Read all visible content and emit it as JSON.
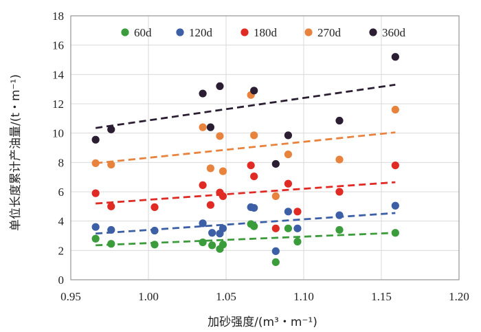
{
  "chart_data": {
    "type": "scatter",
    "xlabel": "加砂强度/(m³・m⁻¹)",
    "ylabel": "单位长度累计产油量/(t・m⁻¹)",
    "xlim": [
      0.95,
      1.2
    ],
    "ylim": [
      0,
      18
    ],
    "x_ticks": [
      "0.95",
      "1.00",
      "1.05",
      "1.10",
      "1.15",
      "1.20"
    ],
    "y_ticks": [
      "0",
      "2",
      "4",
      "6",
      "8",
      "10",
      "12",
      "14",
      "16",
      "18"
    ],
    "grid": true,
    "legend_position": "top",
    "series": [
      {
        "name": "60d",
        "color": "#3a9c3a",
        "points": [
          [
            0.966,
            2.8
          ],
          [
            0.976,
            2.45
          ],
          [
            1.004,
            2.4
          ],
          [
            1.035,
            2.55
          ],
          [
            1.041,
            2.35
          ],
          [
            1.046,
            2.1
          ],
          [
            1.048,
            2.4
          ],
          [
            1.066,
            3.8
          ],
          [
            1.068,
            3.65
          ],
          [
            1.082,
            1.2
          ],
          [
            1.09,
            3.5
          ],
          [
            1.096,
            2.6
          ],
          [
            1.123,
            3.4
          ],
          [
            1.159,
            3.2
          ]
        ],
        "trend": [
          [
            0.966,
            2.35
          ],
          [
            1.159,
            3.2
          ]
        ]
      },
      {
        "name": "120d",
        "color": "#3c5fa6",
        "points": [
          [
            0.966,
            3.6
          ],
          [
            0.976,
            3.4
          ],
          [
            1.004,
            3.35
          ],
          [
            1.035,
            3.85
          ],
          [
            1.041,
            3.2
          ],
          [
            1.046,
            3.15
          ],
          [
            1.048,
            3.5
          ],
          [
            1.066,
            4.95
          ],
          [
            1.068,
            4.9
          ],
          [
            1.082,
            1.95
          ],
          [
            1.09,
            4.65
          ],
          [
            1.096,
            3.5
          ],
          [
            1.123,
            4.4
          ],
          [
            1.159,
            5.05
          ]
        ],
        "trend": [
          [
            0.966,
            3.15
          ],
          [
            1.159,
            4.55
          ]
        ]
      },
      {
        "name": "180d",
        "color": "#e02a24",
        "points": [
          [
            0.966,
            5.9
          ],
          [
            0.976,
            5.0
          ],
          [
            1.004,
            4.95
          ],
          [
            1.035,
            6.45
          ],
          [
            1.04,
            5.1
          ],
          [
            1.046,
            5.95
          ],
          [
            1.048,
            5.7
          ],
          [
            1.066,
            7.8
          ],
          [
            1.068,
            7.05
          ],
          [
            1.082,
            3.5
          ],
          [
            1.09,
            6.55
          ],
          [
            1.096,
            4.65
          ],
          [
            1.123,
            6.0
          ],
          [
            1.159,
            7.8
          ]
        ],
        "trend": [
          [
            0.966,
            5.2
          ],
          [
            1.159,
            6.65
          ]
        ]
      },
      {
        "name": "270d",
        "color": "#e8833e",
        "points": [
          [
            0.966,
            7.95
          ],
          [
            0.976,
            7.85
          ],
          [
            1.035,
            10.4
          ],
          [
            1.04,
            7.6
          ],
          [
            1.046,
            9.8
          ],
          [
            1.048,
            7.4
          ],
          [
            1.066,
            12.6
          ],
          [
            1.068,
            9.85
          ],
          [
            1.082,
            5.7
          ],
          [
            1.09,
            8.55
          ],
          [
            1.123,
            8.2
          ],
          [
            1.159,
            11.6
          ]
        ],
        "trend": [
          [
            0.966,
            7.95
          ],
          [
            1.159,
            10.05
          ]
        ]
      },
      {
        "name": "360d",
        "color": "#2b1e33",
        "points": [
          [
            0.966,
            9.55
          ],
          [
            0.976,
            10.25
          ],
          [
            1.035,
            12.7
          ],
          [
            1.04,
            10.4
          ],
          [
            1.046,
            13.2
          ],
          [
            1.068,
            12.9
          ],
          [
            1.082,
            7.9
          ],
          [
            1.09,
            9.85
          ],
          [
            1.123,
            10.85
          ],
          [
            1.159,
            15.2
          ]
        ],
        "trend": [
          [
            0.966,
            10.35
          ],
          [
            1.159,
            13.3
          ]
        ]
      }
    ]
  }
}
